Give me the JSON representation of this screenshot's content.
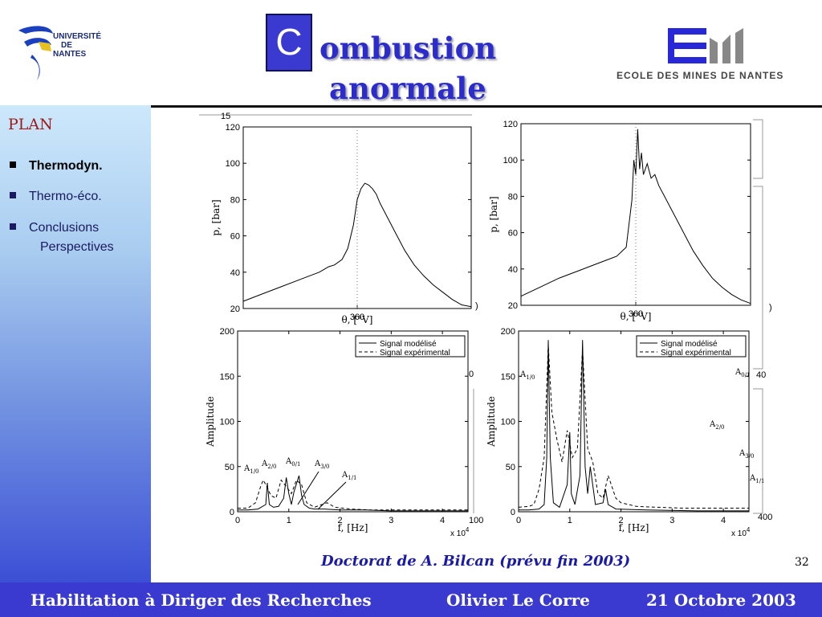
{
  "header": {
    "university": [
      "UNIVERSITÉ",
      "DE",
      "NANTES"
    ],
    "title_initial": "C",
    "title_line1": "ombustion",
    "title_line2": "anormale",
    "school": "ECOLE  DES  MINES  DE  NANTES"
  },
  "sidebar": {
    "title": "PLAN",
    "items": [
      {
        "label": "Thermodyn."
      },
      {
        "label": "Thermo-éco."
      },
      {
        "label": "Conclusions"
      }
    ],
    "sub_label": "Perspectives"
  },
  "caption": "Doctorat de A. Bilcan (prévu fin 2003)",
  "page_number": "32",
  "footer": {
    "left": "Habilitation à Diriger des Recherches",
    "middle": "Olivier Le Corre",
    "right": "21 Octobre 2003"
  },
  "chart_data": [
    {
      "type": "line",
      "xlabel": "θ, [°V]",
      "ylabel": "p, [bar]",
      "ylim": [
        20,
        120
      ],
      "yticks": [
        20,
        40,
        60,
        80,
        100,
        120
      ],
      "xticks": [
        360
      ],
      "xlim": [
        300,
        420
      ],
      "grid": "dotted at x=360",
      "series": [
        {
          "x": [
            300,
            310,
            320,
            330,
            340,
            345,
            348,
            352,
            355,
            358,
            360,
            362,
            364,
            366,
            368,
            370,
            372,
            375,
            380,
            385,
            390,
            395,
            400,
            405,
            410,
            415,
            420
          ],
          "y": [
            24,
            28,
            32,
            36,
            40,
            43,
            44,
            47,
            53,
            66,
            80,
            86,
            89,
            88,
            86,
            83,
            78,
            72,
            62,
            52,
            44,
            38,
            33,
            29,
            25,
            22,
            21
          ]
        }
      ]
    },
    {
      "type": "line",
      "xlabel": "θ, [°V]",
      "ylabel": "p, [bar]",
      "ylim": [
        20,
        120
      ],
      "yticks": [
        20,
        40,
        60,
        80,
        100,
        120
      ],
      "xticks": [
        360
      ],
      "xlim": [
        300,
        420
      ],
      "grid": "dotted at x=360",
      "series": [
        {
          "x": [
            300,
            310,
            320,
            330,
            340,
            350,
            355,
            358,
            359,
            360,
            361,
            362,
            363,
            364,
            366,
            368,
            370,
            372,
            375,
            380,
            385,
            390,
            395,
            400,
            405,
            410,
            415,
            420
          ],
          "y": [
            25,
            30,
            35,
            39,
            43,
            47,
            52,
            78,
            100,
            92,
            117,
            95,
            104,
            92,
            98,
            90,
            92,
            86,
            80,
            70,
            60,
            50,
            42,
            35,
            30,
            26,
            23,
            21
          ]
        }
      ]
    },
    {
      "type": "line",
      "xlabel": "f, [Hz]",
      "ylabel": "Amplitude",
      "x_multiplier": "x 10^4",
      "xlim": [
        0,
        45000
      ],
      "ylim": [
        0,
        200
      ],
      "xticks": [
        0,
        1,
        2,
        3,
        4
      ],
      "yticks": [
        0,
        50,
        100,
        150,
        200
      ],
      "legend": [
        "Signal modélisé",
        "Signal expérimental"
      ],
      "legend_position": "top-right",
      "annotations": [
        "A1/0",
        "A2/0",
        "A0/1",
        "A3/0",
        "A1/1"
      ],
      "series": [
        {
          "name": "Signal modélisé",
          "style": "solid",
          "x": [
            0,
            2000,
            4000,
            5500,
            5800,
            6200,
            7000,
            8000,
            9000,
            9500,
            10000,
            10500,
            11000,
            12000,
            12500,
            13000,
            14000,
            15000,
            17000,
            20000,
            25000,
            30000,
            35000,
            40000,
            45000
          ],
          "y": [
            2,
            2,
            3,
            8,
            32,
            8,
            5,
            6,
            15,
            38,
            20,
            8,
            22,
            40,
            18,
            8,
            4,
            3,
            3,
            2,
            2,
            1,
            1,
            1,
            1
          ]
        },
        {
          "name": "Signal expérimental",
          "style": "dashed",
          "x": [
            0,
            2000,
            3500,
            4500,
            5000,
            5500,
            6500,
            7500,
            8500,
            9500,
            10500,
            11500,
            12500,
            13500,
            15000,
            16500,
            17500,
            19000,
            22000,
            26000,
            30000,
            35000,
            40000,
            45000
          ],
          "y": [
            4,
            4,
            10,
            28,
            35,
            30,
            18,
            15,
            35,
            28,
            20,
            35,
            30,
            10,
            5,
            8,
            10,
            5,
            3,
            2,
            2,
            2,
            2,
            2
          ]
        }
      ]
    },
    {
      "type": "line",
      "xlabel": "f, [Hz]",
      "ylabel": "Amplitude",
      "x_multiplier": "x 10^4",
      "xlim": [
        0,
        45000
      ],
      "ylim": [
        0,
        200
      ],
      "xticks": [
        0,
        1,
        2,
        3,
        4
      ],
      "yticks": [
        0,
        50,
        100,
        150,
        200
      ],
      "legend": [
        "Signal modélisé",
        "Signal expérimental"
      ],
      "legend_position": "top-right",
      "annotations": [
        "A1/0",
        "A0/1",
        "A2/0",
        "A3/0",
        "A1/1"
      ],
      "series": [
        {
          "name": "Signal modélisé",
          "style": "solid",
          "x": [
            0,
            2000,
            4000,
            5000,
            5500,
            5800,
            6200,
            6800,
            8000,
            9500,
            10000,
            10300,
            11000,
            12000,
            12500,
            13000,
            13500,
            14000,
            15000,
            16500,
            17000,
            17500,
            19000,
            25000,
            35000,
            45000
          ],
          "y": [
            2,
            2,
            3,
            8,
            60,
            190,
            60,
            10,
            5,
            30,
            88,
            20,
            8,
            40,
            190,
            50,
            20,
            50,
            8,
            10,
            25,
            8,
            3,
            2,
            1,
            1
          ]
        },
        {
          "name": "Signal expérimental",
          "style": "dashed",
          "x": [
            0,
            2000,
            3000,
            4000,
            5000,
            5800,
            6500,
            7500,
            8500,
            9500,
            10500,
            11500,
            12500,
            13500,
            14500,
            15500,
            16500,
            17500,
            19000,
            20000,
            23000,
            27000,
            32000,
            40000,
            45000
          ],
          "y": [
            5,
            6,
            8,
            25,
            60,
            185,
            110,
            80,
            55,
            90,
            60,
            70,
            180,
            70,
            55,
            20,
            15,
            40,
            15,
            10,
            6,
            5,
            4,
            4,
            4
          ]
        }
      ]
    }
  ]
}
